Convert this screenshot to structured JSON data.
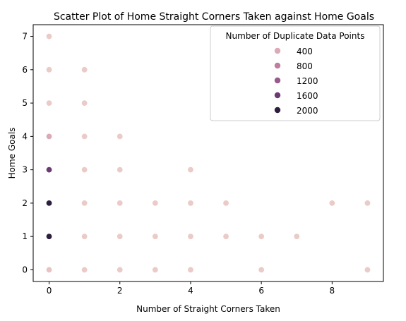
{
  "chart_data": {
    "type": "scatter",
    "title": "Scatter Plot of Home Straight Corners Taken against Home Goals",
    "xlabel": "Number of Straight Corners Taken",
    "ylabel": "Home Goals",
    "xlim": [
      -0.45,
      9.45
    ],
    "ylim": [
      -0.35,
      7.35
    ],
    "xticks": [
      0,
      2,
      4,
      6,
      8
    ],
    "yticks": [
      0,
      1,
      2,
      3,
      4,
      5,
      6,
      7
    ],
    "grid": false,
    "legend": {
      "title": "Number of Duplicate Data Points",
      "placement": "upper-right",
      "entries": [
        {
          "label": "400",
          "color": "#dcaab7"
        },
        {
          "label": "800",
          "color": "#c07e9c"
        },
        {
          "label": "1200",
          "color": "#985a8a"
        },
        {
          "label": "1600",
          "color": "#6b3a72"
        },
        {
          "label": "2000",
          "color": "#2d1e3e"
        }
      ]
    },
    "points": [
      {
        "x": 0,
        "y": 0,
        "color": "#e9c3c1"
      },
      {
        "x": 0,
        "y": 1,
        "color": "#2d1e3e"
      },
      {
        "x": 0,
        "y": 2,
        "color": "#2d1e3e"
      },
      {
        "x": 0,
        "y": 3,
        "color": "#6b3a72"
      },
      {
        "x": 0,
        "y": 4,
        "color": "#dcaab7"
      },
      {
        "x": 0,
        "y": 5,
        "color": "#eacbc7"
      },
      {
        "x": 0,
        "y": 6,
        "color": "#eacbc7"
      },
      {
        "x": 0,
        "y": 7,
        "color": "#eacbc7"
      },
      {
        "x": 1,
        "y": 0,
        "color": "#eacbc7"
      },
      {
        "x": 1,
        "y": 1,
        "color": "#eacbc7"
      },
      {
        "x": 1,
        "y": 2,
        "color": "#eacbc7"
      },
      {
        "x": 1,
        "y": 3,
        "color": "#eacbc7"
      },
      {
        "x": 1,
        "y": 4,
        "color": "#eacbc7"
      },
      {
        "x": 1,
        "y": 5,
        "color": "#eacbc7"
      },
      {
        "x": 1,
        "y": 6,
        "color": "#eacbc7"
      },
      {
        "x": 2,
        "y": 0,
        "color": "#eacbc7"
      },
      {
        "x": 2,
        "y": 1,
        "color": "#eacbc7"
      },
      {
        "x": 2,
        "y": 2,
        "color": "#eacbc7"
      },
      {
        "x": 2,
        "y": 3,
        "color": "#eacbc7"
      },
      {
        "x": 2,
        "y": 4,
        "color": "#eacbc7"
      },
      {
        "x": 3,
        "y": 0,
        "color": "#eacbc7"
      },
      {
        "x": 3,
        "y": 1,
        "color": "#eacbc7"
      },
      {
        "x": 3,
        "y": 2,
        "color": "#eacbc7"
      },
      {
        "x": 4,
        "y": 0,
        "color": "#eacbc7"
      },
      {
        "x": 4,
        "y": 1,
        "color": "#eacbc7"
      },
      {
        "x": 4,
        "y": 2,
        "color": "#eacbc7"
      },
      {
        "x": 4,
        "y": 3,
        "color": "#eacbc7"
      },
      {
        "x": 5,
        "y": 1,
        "color": "#eacbc7"
      },
      {
        "x": 5,
        "y": 2,
        "color": "#eacbc7"
      },
      {
        "x": 6,
        "y": 0,
        "color": "#eacbc7"
      },
      {
        "x": 6,
        "y": 1,
        "color": "#eacbc7"
      },
      {
        "x": 7,
        "y": 1,
        "color": "#eacbc7"
      },
      {
        "x": 8,
        "y": 2,
        "color": "#eacbc7"
      },
      {
        "x": 9,
        "y": 0,
        "color": "#eacbc7"
      },
      {
        "x": 9,
        "y": 2,
        "color": "#eacbc7"
      }
    ]
  }
}
